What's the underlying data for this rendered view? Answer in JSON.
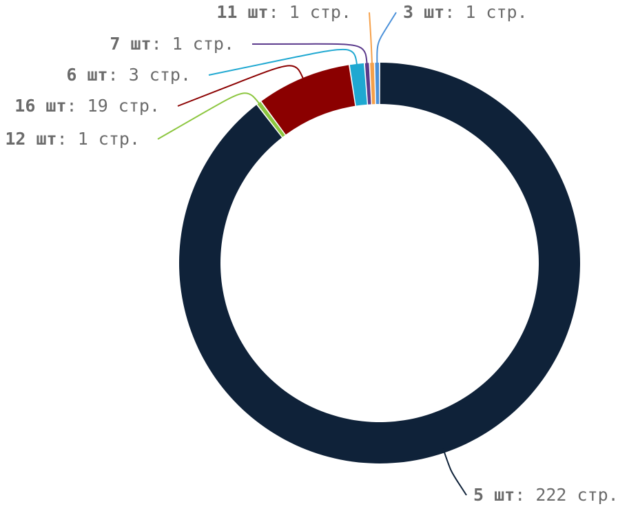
{
  "chart_data": {
    "type": "pie",
    "variant": "donut",
    "title": "",
    "legend": "none (callout labels)",
    "start_angle_deg": 0,
    "direction": "clockwise",
    "unit_suffix": " стр.",
    "separator": ": ",
    "slices": [
      {
        "name": "5 шт",
        "value": 222,
        "label_bold": "5 шт",
        "label_value": "222 стр.",
        "color": "#0f2239",
        "side": "right"
      },
      {
        "name": "12 шт",
        "value": 1,
        "label_bold": "12 шт",
        "label_value": "1 стр.",
        "color": "#8cc63f",
        "side": "left"
      },
      {
        "name": "16 шт",
        "value": 19,
        "label_bold": "16 шт",
        "label_value": "19 стр.",
        "color": "#8b0000",
        "side": "left"
      },
      {
        "name": "6 шт",
        "value": 3,
        "label_bold": "6 шт",
        "label_value": "3 стр.",
        "color": "#1fa8d1",
        "side": "left"
      },
      {
        "name": "7 шт",
        "value": 1,
        "label_bold": "7 шт",
        "label_value": "1 стр.",
        "color": "#5b3a8c",
        "side": "left"
      },
      {
        "name": "11 шт",
        "value": 1,
        "label_bold": "11 шт",
        "label_value": "1 стр.",
        "color": "#f5a04a",
        "side": "left"
      },
      {
        "name": "3 шт",
        "value": 1,
        "label_bold": "3 шт",
        "label_value": "1 стр.",
        "color": "#4a90d9",
        "side": "right"
      }
    ]
  }
}
